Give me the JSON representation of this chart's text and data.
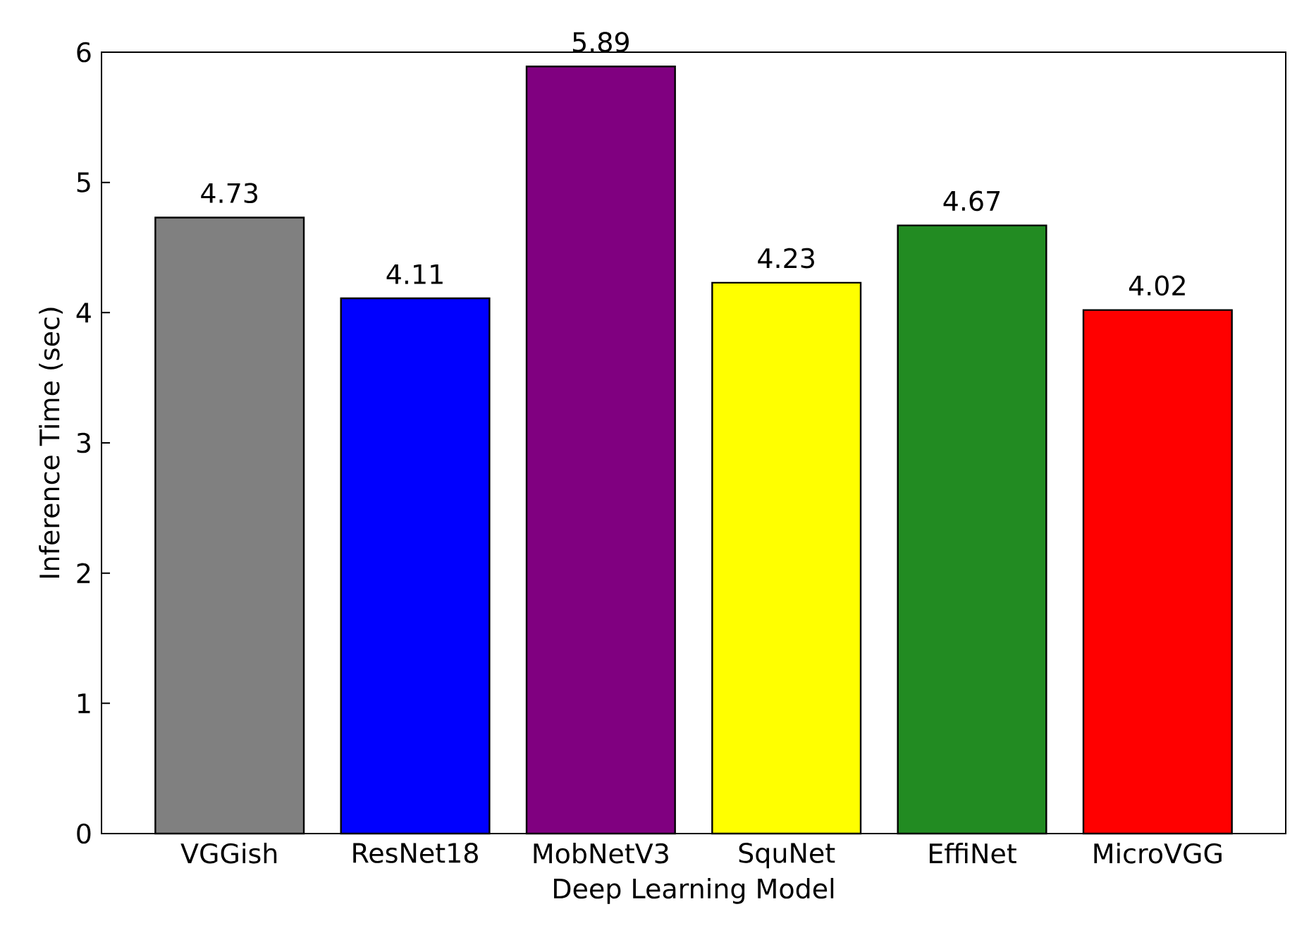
{
  "chart_data": {
    "type": "bar",
    "xlabel": "Deep Learning Model",
    "ylabel": "Inference Time (sec)",
    "categories": [
      "VGGish",
      "ResNet18",
      "MobNetV3",
      "SquNet",
      "EffiNet",
      "MicroVGG"
    ],
    "values": [
      4.73,
      4.11,
      5.89,
      4.23,
      4.67,
      4.02
    ],
    "colors": [
      "#808080",
      "#0000ff",
      "#800080",
      "#ffff00",
      "#228b22",
      "#ff0000"
    ],
    "ylim": [
      0,
      6
    ],
    "yticks": [
      0,
      1,
      2,
      3,
      4,
      5,
      6
    ],
    "data_labels": true
  }
}
